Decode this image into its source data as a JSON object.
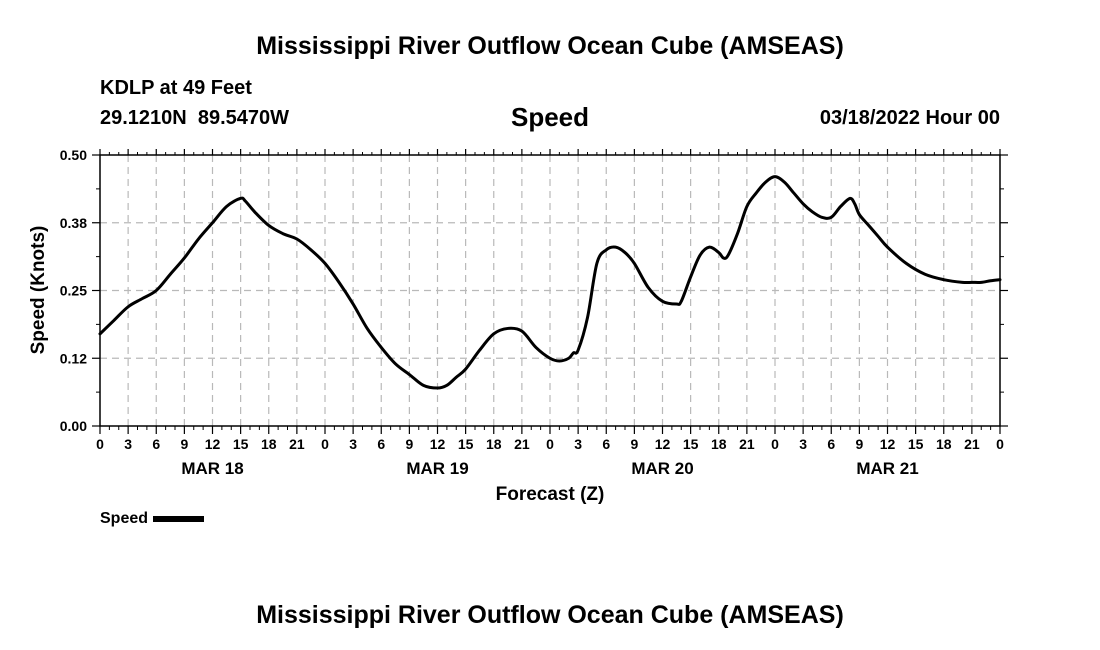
{
  "page": {
    "title": "Mississippi River Outflow Ocean Cube (AMSEAS)",
    "station": "KDLP at 49 Feet",
    "coords": "29.1210N  89.5470W",
    "variable": "Speed",
    "date": "03/18/2022 Hour 00",
    "bottom_title": "Mississippi River Outflow Ocean Cube (AMSEAS)"
  },
  "colors": {
    "line": "#000000",
    "grid": "#b9b9b9",
    "background": "#ffffff"
  },
  "chart_data": {
    "type": "line",
    "title": "Speed",
    "xlabel": "Forecast (Z)",
    "ylabel": "Speed (Knots)",
    "ylim": [
      0,
      0.5
    ],
    "yticks": [
      "0.00",
      "0.12",
      "0.25",
      "0.38",
      "0.50"
    ],
    "xlim": [
      0,
      96
    ],
    "xtick_step_hours": 3,
    "xtick_labels": [
      "0",
      "3",
      "6",
      "9",
      "12",
      "15",
      "18",
      "21",
      "0",
      "3",
      "6",
      "9",
      "12",
      "15",
      "18",
      "21",
      "0",
      "3",
      "6",
      "9",
      "12",
      "15",
      "18",
      "21",
      "0",
      "3",
      "6",
      "9",
      "12",
      "15",
      "18",
      "21",
      "0"
    ],
    "day_labels": [
      {
        "label": "MAR 18",
        "x": 12
      },
      {
        "label": "MAR 19",
        "x": 36
      },
      {
        "label": "MAR 20",
        "x": 60
      },
      {
        "label": "MAR 21",
        "x": 84
      }
    ],
    "grid": true,
    "legend": "bottom-left",
    "series": [
      {
        "name": "Speed",
        "x": [
          0,
          1.5,
          3,
          4.5,
          6,
          7.5,
          9,
          10.5,
          12,
          13.5,
          15,
          15.5,
          16.5,
          18,
          19.5,
          21,
          22.5,
          24,
          25.5,
          27,
          28.5,
          30,
          31.5,
          33,
          34.5,
          36,
          37,
          38,
          39,
          40.5,
          42,
          43.5,
          45,
          46.5,
          48,
          49,
          50,
          50.5,
          51,
          52,
          53,
          54,
          55,
          56,
          57,
          58.5,
          60,
          61.5,
          62,
          63,
          64,
          65,
          66,
          66.5,
          67,
          68,
          69,
          70,
          71,
          72,
          73,
          74,
          75,
          76,
          77,
          78,
          79,
          80,
          80.5,
          81,
          82,
          83,
          84,
          86,
          88,
          90,
          92,
          93,
          94,
          95,
          96
        ],
        "y": [
          0.17,
          0.195,
          0.22,
          0.235,
          0.25,
          0.28,
          0.31,
          0.345,
          0.375,
          0.405,
          0.42,
          0.415,
          0.395,
          0.37,
          0.355,
          0.345,
          0.325,
          0.3,
          0.265,
          0.225,
          0.18,
          0.145,
          0.115,
          0.095,
          0.075,
          0.07,
          0.075,
          0.09,
          0.105,
          0.14,
          0.17,
          0.18,
          0.175,
          0.145,
          0.125,
          0.12,
          0.125,
          0.135,
          0.14,
          0.2,
          0.3,
          0.325,
          0.33,
          0.32,
          0.3,
          0.255,
          0.23,
          0.225,
          0.23,
          0.275,
          0.315,
          0.33,
          0.32,
          0.31,
          0.315,
          0.355,
          0.405,
          0.43,
          0.45,
          0.46,
          0.45,
          0.43,
          0.41,
          0.395,
          0.385,
          0.385,
          0.405,
          0.42,
          0.41,
          0.39,
          0.37,
          0.35,
          0.33,
          0.3,
          0.28,
          0.27,
          0.265,
          0.265,
          0.265,
          0.268,
          0.27
        ]
      }
    ]
  }
}
